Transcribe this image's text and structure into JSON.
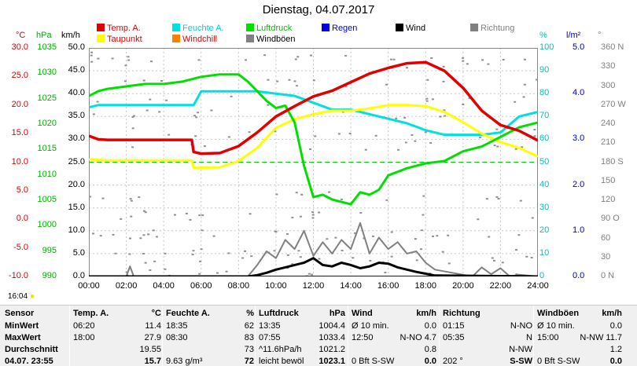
{
  "title": "Dienstag, 04.07.2017",
  "legend": [
    {
      "label": "Temp. A.",
      "color": "#e00000"
    },
    {
      "label": "Feuchte A.",
      "color": "#00e0e0"
    },
    {
      "label": "Luftdruck",
      "color": "#00e000"
    },
    {
      "label": "Regen",
      "color": "#0000e0"
    },
    {
      "label": "Wind",
      "color": "#000000"
    },
    {
      "label": "Richtung",
      "color": "#808080"
    },
    {
      "label": "Taupunkt",
      "color": "#ffff00"
    },
    {
      "label": "Windchill",
      "color": "#ff8000"
    },
    {
      "label": "Windböen",
      "color": "#808080"
    }
  ],
  "units": {
    "temp": "°C",
    "hpa": "hPa",
    "kmh": "km/h",
    "pct": "%",
    "rain": "l/m²",
    "dir": "°"
  },
  "axes": {
    "temp_ticks": [
      "30.0",
      "25.0",
      "20.0",
      "15.0",
      "10.0",
      "5.0",
      "0.0",
      "-5.0",
      "-10.0"
    ],
    "hpa_ticks": [
      "1035",
      "1030",
      "1025",
      "1020",
      "1015",
      "1010",
      "1005",
      "1000",
      "995",
      "990"
    ],
    "kmh_ticks": [
      "50.0",
      "45.0",
      "40.0",
      "35.0",
      "30.0",
      "25.0",
      "20.0",
      "15.0",
      "10.0",
      "5.0",
      "0.0"
    ],
    "pct_ticks": [
      "100",
      "90",
      "80",
      "70",
      "60",
      "50",
      "40",
      "30",
      "20",
      "10",
      "0"
    ],
    "rain_ticks": [
      "5.0",
      "4.0",
      "3.0",
      "2.0",
      "1.0",
      "0.0"
    ],
    "dir_ticks": [
      "360 N",
      "330",
      "300",
      "270 W",
      "240",
      "210",
      "180 S",
      "150",
      "120",
      "90 O",
      "60",
      "30",
      "0 N"
    ],
    "x_ticks": [
      "00:00",
      "02:00",
      "04:00",
      "06:00",
      "08:00",
      "10:00",
      "12:00",
      "14:00",
      "16:00",
      "18:00",
      "20:00",
      "22:00",
      "24:00"
    ]
  },
  "time_marker": "16:04",
  "chart_data": {
    "type": "line",
    "x_unit": "hour",
    "x_range": [
      0,
      24
    ],
    "series": [
      {
        "name": "Temp. A.",
        "axis": "°C",
        "color": "#e00000",
        "x": [
          0,
          0.5,
          1,
          2,
          3,
          4,
          5,
          5.5,
          5.6,
          6,
          7,
          8,
          9,
          10,
          11,
          12,
          13,
          14,
          15,
          16,
          17,
          18,
          19,
          20,
          21,
          22,
          23,
          24
        ],
        "y": [
          14.6,
          14.0,
          13.9,
          13.9,
          13.9,
          13.9,
          13.9,
          13.9,
          11.8,
          11.5,
          11.6,
          12.8,
          15.2,
          18.0,
          19.8,
          21.5,
          22.5,
          24.0,
          25.5,
          26.5,
          27.3,
          27.5,
          26.0,
          23.0,
          19.0,
          16.5,
          15.5,
          13.8
        ]
      },
      {
        "name": "Taupunkt",
        "axis": "°C",
        "color": "#ffff00",
        "x": [
          0,
          1,
          2,
          3,
          4,
          5,
          5.5,
          5.6,
          7,
          8,
          9,
          10,
          11,
          12,
          13,
          14,
          15,
          16,
          17,
          18,
          19,
          20,
          21,
          22,
          23,
          24
        ],
        "y": [
          10.5,
          10.3,
          10.3,
          10.3,
          10.3,
          10.3,
          10.3,
          9.0,
          9.1,
          10.2,
          12.5,
          16.0,
          17.5,
          18.4,
          19.0,
          19.0,
          19.4,
          20.0,
          20.0,
          19.8,
          18.8,
          17.0,
          15.0,
          13.5,
          12.5,
          11.0
        ]
      },
      {
        "name": "Feuchte A.",
        "axis": "%",
        "color": "#00e0e0",
        "x": [
          0,
          0.5,
          1,
          2,
          3,
          4,
          5,
          5.6,
          6,
          7,
          8,
          9,
          10,
          11,
          12,
          13,
          14,
          15,
          16,
          17,
          18,
          19,
          20,
          21,
          22,
          23,
          24
        ],
        "y": [
          74,
          75,
          75,
          75,
          75,
          75,
          75,
          75,
          81,
          81,
          81,
          81,
          80,
          79,
          76,
          73,
          73,
          71,
          69,
          67,
          64,
          62,
          62,
          62,
          63,
          70,
          72
        ]
      },
      {
        "name": "Luftdruck",
        "axis": "hPa",
        "color": "#00e000",
        "x": [
          0,
          0.5,
          1,
          2,
          3,
          4,
          5,
          5.5,
          6,
          7,
          8,
          8.5,
          9,
          9.5,
          10,
          10.5,
          11,
          11.5,
          12,
          12.5,
          13,
          14,
          14.5,
          15,
          15.5,
          16,
          17,
          18,
          19,
          20,
          21,
          22,
          23,
          24
        ],
        "y": [
          1027.5,
          1028.5,
          1029.0,
          1029.5,
          1030,
          1030,
          1030.5,
          1031,
          1031.5,
          1032,
          1032,
          1030.5,
          1028.5,
          1026.5,
          1025.0,
          1025.5,
          1022.0,
          1013,
          1006.5,
          1007,
          1006,
          1005,
          1007.5,
          1007,
          1008,
          1011,
          1012.5,
          1013.5,
          1014,
          1016,
          1017,
          1019,
          1021,
          1022
        ]
      },
      {
        "name": "Wind",
        "axis": "km/h",
        "color": "#000000",
        "x": [
          0,
          8.5,
          9,
          9.5,
          10,
          10.5,
          11,
          11.5,
          12,
          12.5,
          13,
          13.5,
          14,
          14.5,
          15,
          15.5,
          16,
          16.5,
          17,
          17.5,
          18,
          18.5,
          24
        ],
        "y": [
          0,
          0,
          0.3,
          0.8,
          1.5,
          2.0,
          2.5,
          3.0,
          4.0,
          2.5,
          2.2,
          3.0,
          2.5,
          1.8,
          2.2,
          3.0,
          2.8,
          2.0,
          1.5,
          1.0,
          0.6,
          0.2,
          0
        ]
      },
      {
        "name": "Windböen",
        "axis": "km/h",
        "color": "#808080",
        "x": [
          0,
          2,
          2.2,
          2.4,
          8.5,
          9,
          9.5,
          10,
          10.5,
          11,
          11.5,
          12,
          12.5,
          13,
          13.5,
          14,
          14.5,
          15,
          15.5,
          16,
          16.5,
          17,
          17.5,
          18,
          18.5,
          20.5,
          21,
          21.5,
          22,
          22.5,
          23,
          24
        ],
        "y": [
          0,
          0,
          2.2,
          0,
          0,
          2.5,
          5.5,
          4.0,
          8.0,
          6.0,
          10.0,
          4.5,
          7.5,
          5.0,
          8.0,
          6.0,
          11.7,
          5.0,
          8.5,
          6.0,
          7.5,
          5.0,
          5.5,
          3.0,
          1.5,
          0,
          2.0,
          0.5,
          1.8,
          0,
          0.4,
          0
        ]
      },
      {
        "name": "Regen",
        "axis": "l/m²",
        "color": "#0000e0",
        "x": [
          0,
          24
        ],
        "y": [
          0,
          0
        ]
      }
    ],
    "threshold_line": {
      "axis": "°C",
      "value": 10,
      "color": "#00cc00",
      "style": "dashed"
    },
    "direction_scatter": {
      "axis": "°",
      "note": "grey dots"
    }
  },
  "table": {
    "headers": {
      "sensor": "Sensor",
      "temp": "Temp. A.",
      "temp_unit": "°C",
      "hum": "Feuchte A.",
      "hum_unit": "%",
      "press": "Luftdruck",
      "press_unit": "hPa",
      "wind": "Wind",
      "wind_unit": "km/h",
      "dir": "Richtung",
      "gust": "Windböen",
      "gust_unit": "km/h"
    },
    "rows": [
      {
        "label": "MinWert",
        "t_time": "06:20",
        "t_val": "11.4",
        "h_time": "18:35",
        "h_val": "62",
        "p_time": "13:35",
        "p_val": "1004.4",
        "w_time": "Ø 10 min.",
        "w_val": "0.0",
        "d_time": "01:15",
        "d_val": "N-NO",
        "g_time": "Ø 10 min.",
        "g_val": "0.0"
      },
      {
        "label": "MaxWert",
        "t_time": "18:00",
        "t_val": "27.9",
        "h_time": "08:30",
        "h_val": "83",
        "p_time": "07:55",
        "p_val": "1033.4",
        "w_time": "12:50",
        "w_val": "N-NO 4.7",
        "d_time": "05:35",
        "d_val": "N",
        "g_time": "15:00",
        "g_val": "N-NW 11.7"
      },
      {
        "label": "Durchschnitt",
        "t_time": "",
        "t_val": "19.55",
        "h_time": "",
        "h_val": "73",
        "p_time": "^11.6hPa/h",
        "p_val": "1021.2",
        "w_time": "",
        "w_val": "0.8",
        "d_time": "",
        "d_val": "N-NW",
        "g_time": "",
        "g_val": "1.2"
      },
      {
        "label": "04.07. 23:55",
        "t_time": "",
        "t_val": "15.7",
        "h_time": "9.63 g/m³",
        "h_val": "72",
        "p_time": "leicht bewöl",
        "p_val": "1023.1",
        "w_time": "0 Bft S-SW",
        "w_val": "0.0",
        "d_time": "202 °",
        "d_val": "S-SW",
        "g_time": "0 Bft S-SW",
        "g_val": "0.0"
      }
    ]
  }
}
